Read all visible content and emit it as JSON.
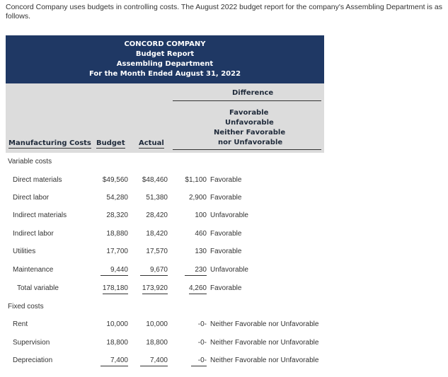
{
  "intro": "Concord Company uses budgets in controlling costs. The August 2022 budget report for the company's Assembling Department is as follows.",
  "report": {
    "company": "CONCORD COMPANY",
    "title": "Budget Report",
    "department": "Assembling Department",
    "period": "For the Month Ended August 31, 2022"
  },
  "headers": {
    "difference": "Difference",
    "status_lines": [
      "Favorable",
      "Unfavorable",
      "Neither Favorable",
      "nor Unfavorable"
    ],
    "manufacturing_costs": "Manufacturing Costs",
    "budget": "Budget",
    "actual": "Actual"
  },
  "sections": {
    "variable": "Variable costs",
    "fixed": "Fixed costs"
  },
  "variable_rows": [
    {
      "label": "Direct materials",
      "budget": "$49,560",
      "actual": "$48,460",
      "difference": "$1,100",
      "status": "Favorable"
    },
    {
      "label": "Direct labor",
      "budget": "54,280",
      "actual": "51,380",
      "difference": "2,900",
      "status": "Favorable"
    },
    {
      "label": "Indirect materials",
      "budget": "28,320",
      "actual": "28,420",
      "difference": "100",
      "status": "Unfavorable"
    },
    {
      "label": "Indirect labor",
      "budget": "18,880",
      "actual": "18,420",
      "difference": "460",
      "status": "Favorable"
    },
    {
      "label": "Utilities",
      "budget": "17,700",
      "actual": "17,570",
      "difference": "130",
      "status": "Favorable"
    },
    {
      "label": "Maintenance",
      "budget": "9,440",
      "actual": "9,670",
      "difference": "230",
      "status": "Unfavorable"
    }
  ],
  "total_variable": {
    "label": "Total variable",
    "budget": "178,180",
    "actual": "173,920",
    "difference": "4,260",
    "status": "Favorable"
  },
  "fixed_rows": [
    {
      "label": "Rent",
      "budget": "10,000",
      "actual": "10,000",
      "difference": "-0-",
      "status": "Neither Favorable nor Unfavorable"
    },
    {
      "label": "Supervision",
      "budget": "18,800",
      "actual": "18,800",
      "difference": "-0-",
      "status": "Neither Favorable nor Unfavorable"
    },
    {
      "label": "Depreciation",
      "budget": "7,400",
      "actual": "7,400",
      "difference": "-0-",
      "status": "Neither Favorable nor Unfavorable"
    }
  ]
}
